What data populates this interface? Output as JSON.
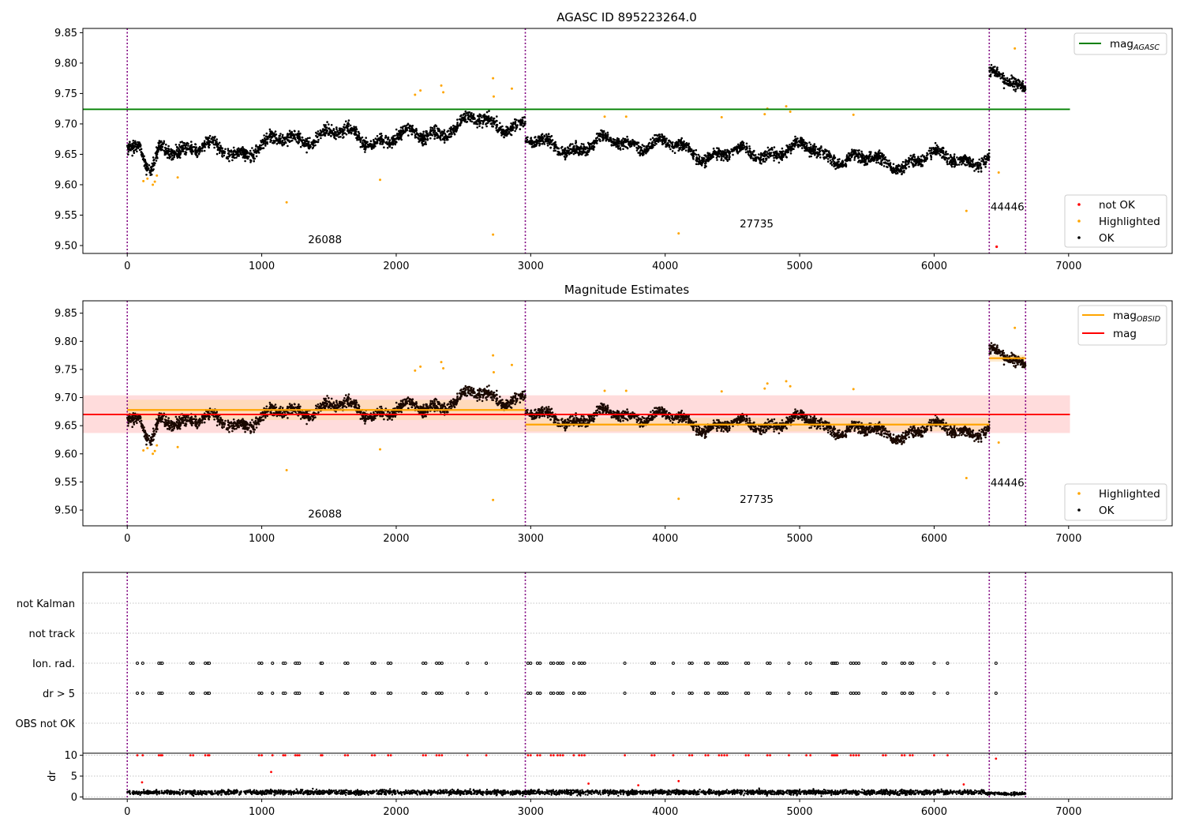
{
  "figure": {
    "background": "#ffffff"
  },
  "colors": {
    "ok": "#000000",
    "highlighted": "#ffa500",
    "not_ok": "#ff0000",
    "agasc_line": "#008000",
    "obsid_line": "#ffa500",
    "mag_line": "#ff0000",
    "obs_boundary": "#800080",
    "mag_band": "#ffc0c0",
    "obsid_band": "#ffd9a0",
    "grid": "#b0b0b0"
  },
  "chart_data": [
    {
      "type": "scatter",
      "title": "AGASC ID 895223264.0",
      "xlim": [
        -330,
        7770
      ],
      "ylim": [
        9.487,
        9.857
      ],
      "xticks": [
        "0",
        "1000",
        "2000",
        "3000",
        "4000",
        "5000",
        "6000",
        "7000"
      ],
      "yticks": [
        "9.50",
        "9.55",
        "9.60",
        "9.65",
        "9.70",
        "9.75",
        "9.80",
        "9.85"
      ],
      "legend": {
        "placement": "top-right",
        "entries": [
          {
            "label": "mag",
            "sub": "AGASC",
            "style": "line",
            "color": "#008000"
          }
        ]
      },
      "legend2": {
        "placement": "lower-right",
        "entries": [
          {
            "label": "not OK",
            "color": "#ff0000"
          },
          {
            "label": "Highlighted",
            "color": "#ffa500"
          },
          {
            "label": "OK",
            "color": "#000000"
          }
        ]
      },
      "mag_agasc": 9.724,
      "mag_agasc_xrange": [
        -330,
        7010
      ],
      "obs_boundaries": [
        0,
        2960,
        6410,
        6680
      ],
      "obs_labels": [
        {
          "text": "26088",
          "x": 1470,
          "y": 9.504
        },
        {
          "text": "27735",
          "x": 4680,
          "y": 9.53
        },
        {
          "text": "44446",
          "x": 6545,
          "y": 9.558
        }
      ],
      "series": [
        {
          "name": "OK",
          "color": "#000000",
          "segments": [
            {
              "x": [
                0,
                2960
              ],
              "baseline": 9.672,
              "trend": [
                9.65,
                9.7
              ],
              "amp": 0.022
            },
            {
              "x": [
                2960,
                6410
              ],
              "baseline": 9.655,
              "trend": [
                9.672,
                9.635
              ],
              "amp": 0.02
            },
            {
              "x": [
                6410,
                6680
              ],
              "baseline": 9.772,
              "trend": [
                9.775,
                9.765
              ],
              "amp": 0.02
            }
          ]
        },
        {
          "name": "Highlighted",
          "color": "#ffa500",
          "points": [
            [
              1185,
              9.571
            ],
            [
              1880,
              9.608
            ],
            [
              2720,
              9.518
            ],
            [
              4100,
              9.52
            ],
            [
              6240,
              9.557
            ],
            [
              6480,
              9.62
            ],
            [
              6600,
              9.824
            ],
            [
              120,
              9.606
            ],
            [
              150,
              9.61
            ],
            [
              190,
              9.6
            ],
            [
              205,
              9.605
            ],
            [
              220,
              9.615
            ],
            [
              375,
              9.612
            ],
            [
              2140,
              9.748
            ],
            [
              2180,
              9.755
            ],
            [
              2335,
              9.763
            ],
            [
              2350,
              9.752
            ],
            [
              2720,
              9.775
            ],
            [
              2725,
              9.745
            ],
            [
              2860,
              9.758
            ],
            [
              3550,
              9.712
            ],
            [
              3710,
              9.712
            ],
            [
              4420,
              9.711
            ],
            [
              4740,
              9.716
            ],
            [
              4760,
              9.725
            ],
            [
              4900,
              9.729
            ],
            [
              4930,
              9.72
            ],
            [
              5400,
              9.715
            ]
          ]
        },
        {
          "name": "not OK",
          "color": "#ff0000",
          "points": [
            [
              6465,
              9.498
            ]
          ]
        }
      ]
    },
    {
      "type": "scatter",
      "title": "Magnitude Estimates",
      "xlim": [
        -330,
        7770
      ],
      "ylim": [
        9.472,
        9.872
      ],
      "xticks": [
        "0",
        "1000",
        "2000",
        "3000",
        "4000",
        "5000",
        "6000",
        "7000"
      ],
      "yticks": [
        "9.50",
        "9.55",
        "9.60",
        "9.65",
        "9.70",
        "9.75",
        "9.80",
        "9.85"
      ],
      "legend": {
        "placement": "top-right",
        "entries": [
          {
            "label": "mag",
            "sub": "OBSID",
            "style": "line",
            "color": "#ffa500"
          },
          {
            "label": "mag",
            "sub": "",
            "style": "line",
            "color": "#ff0000"
          }
        ]
      },
      "legend2": {
        "placement": "lower-right",
        "entries": [
          {
            "label": "Highlighted",
            "color": "#ffa500"
          },
          {
            "label": "OK",
            "color": "#000000"
          }
        ]
      },
      "mag": 9.67,
      "mag_band": [
        9.637,
        9.704
      ],
      "mag_xrange": [
        -330,
        7010
      ],
      "obsid_mags": [
        {
          "x": [
            0,
            2960
          ],
          "mag": 9.678,
          "band": [
            9.66,
            9.696
          ]
        },
        {
          "x": [
            2960,
            6410
          ],
          "mag": 9.652,
          "band": [
            9.64,
            9.664
          ]
        },
        {
          "x": [
            6410,
            6680
          ],
          "mag": 9.77,
          "band": [
            9.764,
            9.776
          ]
        }
      ],
      "obs_boundaries": [
        0,
        2960,
        6410,
        6680
      ],
      "obs_labels": [
        {
          "text": "26088",
          "x": 1470,
          "y": 9.487
        },
        {
          "text": "27735",
          "x": 4680,
          "y": 9.513
        },
        {
          "text": "44446",
          "x": 6545,
          "y": 9.542
        }
      ]
    },
    {
      "type": "scatter",
      "title": "",
      "xlim": [
        -330,
        7770
      ],
      "categories": [
        "not Kalman",
        "not track",
        "Ion. rad.",
        "dr > 5",
        "OBS not OK"
      ],
      "flag_x": [
        75,
        115,
        235,
        250,
        260,
        470,
        490,
        580,
        600,
        610,
        980,
        1000,
        1080,
        1160,
        1175,
        1250,
        1265,
        1280,
        1440,
        1450,
        1620,
        1640,
        1820,
        1840,
        1940,
        1960,
        2200,
        2220,
        2300,
        2320,
        2340,
        2530,
        2670,
        2980,
        3000,
        3050,
        3070,
        3150,
        3170,
        3200,
        3220,
        3240,
        3320,
        3360,
        3380,
        3400,
        3700,
        3900,
        3920,
        4060,
        4180,
        4200,
        4300,
        4320,
        4400,
        4420,
        4440,
        4460,
        4600,
        4620,
        4760,
        4780,
        4920,
        5050,
        5080,
        5240,
        5250,
        5260,
        5270,
        5280,
        5380,
        5400,
        5420,
        5440,
        5620,
        5640,
        5760,
        5780,
        5820,
        5840,
        6000,
        6100,
        6460
      ]
    },
    {
      "type": "scatter",
      "title": "",
      "xlim": [
        -330,
        7770
      ],
      "ylim": [
        -0.5,
        10.5
      ],
      "xticks": [
        "0",
        "1000",
        "2000",
        "3000",
        "4000",
        "5000",
        "6000",
        "7000"
      ],
      "yticks": [
        "0",
        "5",
        "10"
      ],
      "ylabel": "dr",
      "dr_outliers": [
        [
          110,
          3.5
        ],
        [
          1070,
          6.0
        ],
        [
          3430,
          3.2
        ],
        [
          3800,
          2.8
        ],
        [
          4100,
          3.8
        ],
        [
          6220,
          3.0
        ],
        [
          6460,
          9.2
        ]
      ]
    }
  ]
}
